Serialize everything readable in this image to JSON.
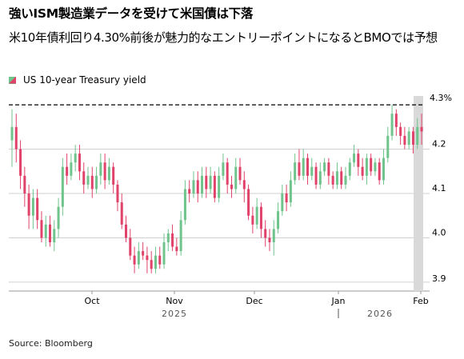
{
  "header": {
    "title": "強いISM製造業データを受けて米国債は下落",
    "subtitle": "米10年債利回り4.30%前後が魅力的なエントリーポイントになるとBMOでは予想"
  },
  "legend": {
    "label": "US 10-year Treasury yield"
  },
  "colors": {
    "up": "#6fc48c",
    "down": "#e0426a",
    "reference_line": "#000000",
    "highlight_band": "#d9d9d9",
    "grid": "#d0d0d0"
  },
  "source": "Source: Bloomberg",
  "chart_data": {
    "type": "candlestick",
    "title": "強いISM製造業データを受けて米国債は下落",
    "series": [
      {
        "name": "US 10-year Treasury yield"
      }
    ],
    "ylim": [
      3.88,
      4.32
    ],
    "yticks": [
      3.9,
      4.0,
      4.1,
      4.2
    ],
    "ytick_labels": [
      "3.9",
      "4.0",
      "4.1",
      "4.2"
    ],
    "reference_line": {
      "value": 4.3,
      "label": "4.3%",
      "style": "dashed"
    },
    "xticks": [
      "Oct",
      "Nov",
      "Dec",
      "Jan",
      "Feb"
    ],
    "year_labels": [
      "2025",
      "2026"
    ],
    "y_axis_position": "right",
    "grid": "horizontal",
    "highlight_last_period": true,
    "candles": [
      [
        4.22,
        4.25,
        4.29,
        4.16
      ],
      [
        4.25,
        4.2,
        4.28,
        4.17
      ],
      [
        4.2,
        4.14,
        4.22,
        4.11
      ],
      [
        4.14,
        4.1,
        4.16,
        4.07
      ],
      [
        4.1,
        4.05,
        4.12,
        4.02
      ],
      [
        4.05,
        4.09,
        4.11,
        4.02
      ],
      [
        4.09,
        4.04,
        4.11,
        4.02
      ],
      [
        4.04,
        4.0,
        4.06,
        3.99
      ],
      [
        4.0,
        4.03,
        4.05,
        3.98
      ],
      [
        4.03,
        3.99,
        4.05,
        3.98
      ],
      [
        3.99,
        4.02,
        4.04,
        3.97
      ],
      [
        4.02,
        4.07,
        4.09,
        4.0
      ],
      [
        4.07,
        4.16,
        4.18,
        4.05
      ],
      [
        4.16,
        4.14,
        4.19,
        4.12
      ],
      [
        4.14,
        4.17,
        4.19,
        4.13
      ],
      [
        4.17,
        4.19,
        4.21,
        4.15
      ],
      [
        4.19,
        4.15,
        4.21,
        4.13
      ],
      [
        4.15,
        4.12,
        4.17,
        4.1
      ],
      [
        4.12,
        4.14,
        4.16,
        4.11
      ],
      [
        4.14,
        4.11,
        4.16,
        4.09
      ],
      [
        4.11,
        4.14,
        4.16,
        4.1
      ],
      [
        4.14,
        4.17,
        4.19,
        4.12
      ],
      [
        4.17,
        4.13,
        4.19,
        4.11
      ],
      [
        4.13,
        4.16,
        4.18,
        4.12
      ],
      [
        4.16,
        4.12,
        4.17,
        4.1
      ],
      [
        4.12,
        4.08,
        4.13,
        4.06
      ],
      [
        4.08,
        4.03,
        4.1,
        4.02
      ],
      [
        4.03,
        4.0,
        4.05,
        3.99
      ],
      [
        4.0,
        3.96,
        4.02,
        3.95
      ],
      [
        3.96,
        3.94,
        3.98,
        3.92
      ],
      [
        3.94,
        3.97,
        3.99,
        3.93
      ],
      [
        3.97,
        3.96,
        3.99,
        3.95
      ],
      [
        3.96,
        3.95,
        3.98,
        3.92
      ],
      [
        3.95,
        3.93,
        3.97,
        3.92
      ],
      [
        3.93,
        3.96,
        3.98,
        3.92
      ],
      [
        3.96,
        3.94,
        3.98,
        3.93
      ],
      [
        3.94,
        3.99,
        4.01,
        3.93
      ],
      [
        3.99,
        4.01,
        4.02,
        3.97
      ],
      [
        4.01,
        3.98,
        4.03,
        3.97
      ],
      [
        3.98,
        3.97,
        4.0,
        3.96
      ],
      [
        3.97,
        4.04,
        4.06,
        3.96
      ],
      [
        4.04,
        4.11,
        4.13,
        4.03
      ],
      [
        4.11,
        4.1,
        4.13,
        4.08
      ],
      [
        4.1,
        4.13,
        4.15,
        4.09
      ],
      [
        4.13,
        4.1,
        4.15,
        4.08
      ],
      [
        4.1,
        4.14,
        4.16,
        4.09
      ],
      [
        4.14,
        4.11,
        4.16,
        4.09
      ],
      [
        4.11,
        4.14,
        4.16,
        4.1
      ],
      [
        4.14,
        4.09,
        4.15,
        4.08
      ],
      [
        4.09,
        4.14,
        4.16,
        4.08
      ],
      [
        4.14,
        4.17,
        4.19,
        4.13
      ],
      [
        4.17,
        4.12,
        4.18,
        4.1
      ],
      [
        4.12,
        4.11,
        4.14,
        4.09
      ],
      [
        4.11,
        4.16,
        4.18,
        4.1
      ],
      [
        4.16,
        4.13,
        4.18,
        4.12
      ],
      [
        4.13,
        4.11,
        4.15,
        4.08
      ],
      [
        4.11,
        4.05,
        4.12,
        4.04
      ],
      [
        4.05,
        4.03,
        4.07,
        4.01
      ],
      [
        4.03,
        4.07,
        4.09,
        4.02
      ],
      [
        4.07,
        4.02,
        4.08,
        4.0
      ],
      [
        4.02,
        4.0,
        4.04,
        3.98
      ],
      [
        4.0,
        3.99,
        4.02,
        3.97
      ],
      [
        3.99,
        4.02,
        4.04,
        3.96
      ],
      [
        4.02,
        4.06,
        4.08,
        4.01
      ],
      [
        4.06,
        4.1,
        4.12,
        4.05
      ],
      [
        4.1,
        4.08,
        4.12,
        4.06
      ],
      [
        4.08,
        4.13,
        4.15,
        4.07
      ],
      [
        4.13,
        4.17,
        4.19,
        4.12
      ],
      [
        4.17,
        4.14,
        4.2,
        4.13
      ],
      [
        4.14,
        4.18,
        4.2,
        4.13
      ],
      [
        4.18,
        4.14,
        4.19,
        4.12
      ],
      [
        4.14,
        4.16,
        4.18,
        4.13
      ],
      [
        4.16,
        4.12,
        4.17,
        4.11
      ],
      [
        4.12,
        4.15,
        4.17,
        4.11
      ],
      [
        4.15,
        4.17,
        4.18,
        4.14
      ],
      [
        4.17,
        4.14,
        4.18,
        4.12
      ],
      [
        4.14,
        4.12,
        4.15,
        4.11
      ],
      [
        4.12,
        4.15,
        4.17,
        4.11
      ],
      [
        4.15,
        4.12,
        4.16,
        4.11
      ],
      [
        4.12,
        4.14,
        4.16,
        4.11
      ],
      [
        4.14,
        4.17,
        4.18,
        4.13
      ],
      [
        4.17,
        4.19,
        4.21,
        4.16
      ],
      [
        4.19,
        4.16,
        4.2,
        4.14
      ],
      [
        4.16,
        4.14,
        4.18,
        4.13
      ],
      [
        4.14,
        4.18,
        4.19,
        4.12
      ],
      [
        4.18,
        4.15,
        4.19,
        4.14
      ],
      [
        4.15,
        4.17,
        4.18,
        4.14
      ],
      [
        4.17,
        4.13,
        4.18,
        4.12
      ],
      [
        4.13,
        4.18,
        4.2,
        4.12
      ],
      [
        4.18,
        4.23,
        4.25,
        4.17
      ],
      [
        4.23,
        4.28,
        4.3,
        4.22
      ],
      [
        4.28,
        4.25,
        4.29,
        4.23
      ],
      [
        4.25,
        4.23,
        4.26,
        4.21
      ],
      [
        4.23,
        4.21,
        4.25,
        4.2
      ],
      [
        4.21,
        4.24,
        4.25,
        4.2
      ],
      [
        4.24,
        4.21,
        4.25,
        4.19
      ],
      [
        4.21,
        4.25,
        4.27,
        4.2
      ],
      [
        4.25,
        4.24,
        4.28,
        4.21
      ]
    ]
  }
}
